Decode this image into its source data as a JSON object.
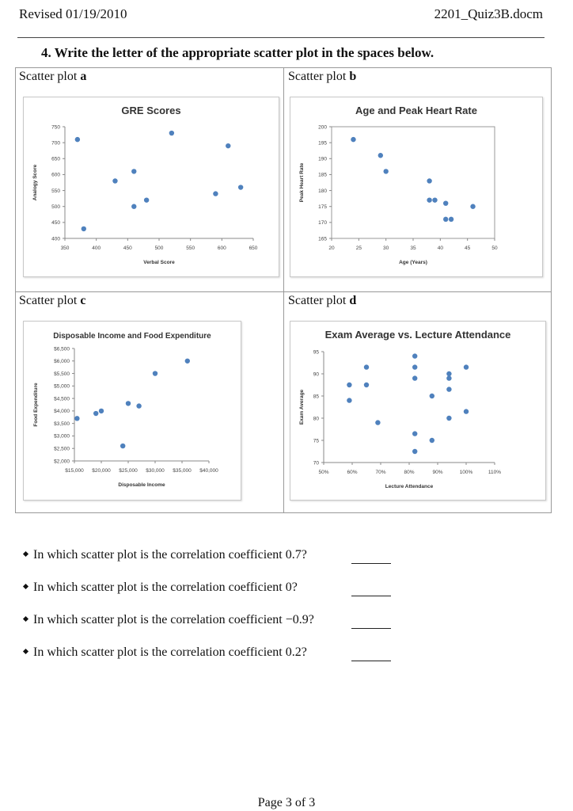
{
  "header": {
    "revised": "Revised 01/19/2010",
    "filename": "2201_Quiz3B.docm"
  },
  "question": {
    "title": "4.  Write the letter of the appropriate scatter plot in the spaces below."
  },
  "plots": [
    {
      "label_prefix": "Scatter plot ",
      "letter": "a"
    },
    {
      "label_prefix": "Scatter plot ",
      "letter": "b"
    },
    {
      "label_prefix": "Scatter plot ",
      "letter": "c"
    },
    {
      "label_prefix": "Scatter plot ",
      "letter": "d"
    }
  ],
  "chart_data": [
    {
      "type": "scatter",
      "title": "GRE Scores",
      "xlabel": "Verbal Score",
      "ylabel": "Analogy Score",
      "xlim": [
        350,
        650
      ],
      "ylim": [
        400,
        750
      ],
      "xticks": [
        "350",
        "400",
        "450",
        "500",
        "550",
        "600",
        "650"
      ],
      "yticks": [
        "400",
        "450",
        "500",
        "550",
        "600",
        "650",
        "700",
        "750"
      ],
      "grid": false,
      "points": [
        [
          370,
          710
        ],
        [
          380,
          430
        ],
        [
          430,
          580
        ],
        [
          460,
          610
        ],
        [
          460,
          500
        ],
        [
          480,
          520
        ],
        [
          520,
          730
        ],
        [
          590,
          540
        ],
        [
          610,
          690
        ],
        [
          630,
          560
        ]
      ]
    },
    {
      "type": "scatter",
      "title": "Age and Peak Heart Rate",
      "xlabel": "Age (Years)",
      "ylabel": "Peak Heart Rate",
      "xlim": [
        20,
        50
      ],
      "ylim": [
        165,
        200
      ],
      "xticks": [
        "20",
        "25",
        "30",
        "35",
        "40",
        "45",
        "50"
      ],
      "yticks": [
        "165",
        "170",
        "175",
        "180",
        "185",
        "190",
        "195",
        "200"
      ],
      "grid": false,
      "points": [
        [
          24,
          196
        ],
        [
          29,
          191
        ],
        [
          30,
          186
        ],
        [
          38,
          183
        ],
        [
          38,
          177
        ],
        [
          39,
          177
        ],
        [
          41,
          176
        ],
        [
          41,
          171
        ],
        [
          42,
          171
        ],
        [
          46,
          175
        ]
      ]
    },
    {
      "type": "scatter",
      "title": "Disposable Income and Food Expenditure",
      "xlabel": "Disposable Income",
      "ylabel": "Food Expenditure",
      "xlim": [
        15000,
        40000
      ],
      "ylim": [
        2000,
        6500
      ],
      "xticks": [
        "$15,000",
        "$20,000",
        "$25,000",
        "$30,000",
        "$35,000",
        "$40,000"
      ],
      "yticks": [
        "$2,000",
        "$2,500",
        "$3,000",
        "$3,500",
        "$4,000",
        "$4,500",
        "$5,000",
        "$5,500",
        "$6,000",
        "$6,500"
      ],
      "grid": false,
      "points": [
        [
          15500,
          3700
        ],
        [
          19000,
          3900
        ],
        [
          20000,
          4000
        ],
        [
          24000,
          2600
        ],
        [
          25000,
          4300
        ],
        [
          27000,
          4200
        ],
        [
          30000,
          5500
        ],
        [
          36000,
          6000
        ]
      ]
    },
    {
      "type": "scatter",
      "title": "Exam Average vs. Lecture Attendance",
      "xlabel": "Lecture Attendance",
      "ylabel": "Exam Average",
      "xlim": [
        50,
        110
      ],
      "ylim": [
        70,
        95
      ],
      "xticks": [
        "50%",
        "60%",
        "70%",
        "80%",
        "90%",
        "100%",
        "110%"
      ],
      "yticks": [
        "70",
        "75",
        "80",
        "85",
        "90",
        "95"
      ],
      "grid": false,
      "points": [
        [
          59,
          87.5
        ],
        [
          59,
          84
        ],
        [
          65,
          91.5
        ],
        [
          65,
          87.5
        ],
        [
          69,
          79
        ],
        [
          82,
          94
        ],
        [
          82,
          91.5
        ],
        [
          82,
          89
        ],
        [
          82,
          76.5
        ],
        [
          82,
          72.5
        ],
        [
          88,
          85
        ],
        [
          88,
          75
        ],
        [
          94,
          90
        ],
        [
          94,
          89
        ],
        [
          94,
          86.5
        ],
        [
          94,
          80
        ],
        [
          100,
          91.5
        ],
        [
          100,
          81.5
        ]
      ]
    }
  ],
  "questions": [
    "In which scatter plot is the correlation coefficient 0.7?",
    "In which scatter plot is the correlation coefficient 0?",
    "In which scatter plot is the correlation coefficient −0.9?",
    "In which scatter plot is the correlation coefficient 0.2?"
  ],
  "footer": {
    "page": "Page 3 of 3"
  },
  "colors": {
    "marker": "#4f81bd",
    "axis": "#888888"
  }
}
